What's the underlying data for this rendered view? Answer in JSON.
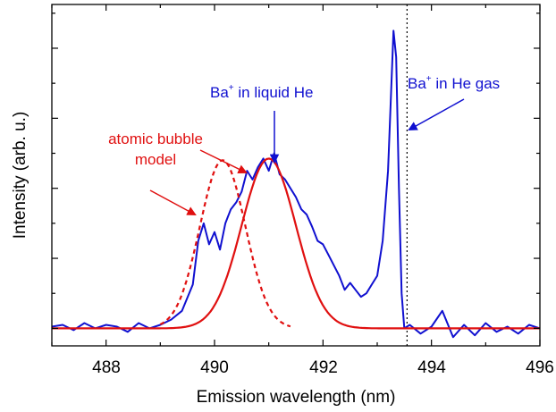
{
  "chart_data": {
    "type": "line",
    "title": "",
    "xlabel": "Emission wavelength (nm)",
    "ylabel": "Intensity (arb. u.)",
    "xlim": [
      487,
      496
    ],
    "ylim": [
      -0.1,
      1.85
    ],
    "xticks": [
      488,
      490,
      492,
      494,
      496
    ],
    "xtick_labels": [
      "488",
      "490",
      "492",
      "494",
      "496"
    ],
    "grid": false,
    "legend": "none",
    "colors": {
      "blue": "#1010d0",
      "red": "#e01010",
      "black": "#000000"
    },
    "series": [
      {
        "name": "Ba+ in liquid He",
        "color": "#1010d0",
        "style": "solid",
        "x": [
          487.0,
          487.2,
          487.4,
          487.6,
          487.8,
          488.0,
          488.2,
          488.4,
          488.6,
          488.8,
          489.0,
          489.2,
          489.4,
          489.6,
          489.7,
          489.8,
          489.9,
          490.0,
          490.1,
          490.2,
          490.3,
          490.4,
          490.5,
          490.6,
          490.7,
          490.8,
          490.9,
          491.0,
          491.1,
          491.2,
          491.3,
          491.4,
          491.5,
          491.6,
          491.7,
          491.8,
          491.9,
          492.0,
          492.1,
          492.2,
          492.3,
          492.4,
          492.5,
          492.6,
          492.7,
          492.8,
          492.9,
          493.0,
          493.1,
          493.2,
          493.3,
          493.35,
          493.4,
          493.45,
          493.5,
          493.6,
          493.8,
          494.0,
          494.2,
          494.4,
          494.6,
          494.8,
          495.0,
          495.2,
          495.4,
          495.6,
          495.8,
          496.0
        ],
        "y": [
          0.01,
          0.02,
          -0.01,
          0.03,
          0.0,
          0.02,
          0.01,
          -0.02,
          0.03,
          0.0,
          0.02,
          0.05,
          0.1,
          0.25,
          0.5,
          0.6,
          0.48,
          0.55,
          0.45,
          0.6,
          0.68,
          0.72,
          0.78,
          0.9,
          0.85,
          0.92,
          0.97,
          0.9,
          1.0,
          0.88,
          0.85,
          0.8,
          0.75,
          0.68,
          0.65,
          0.58,
          0.5,
          0.48,
          0.42,
          0.36,
          0.3,
          0.22,
          0.26,
          0.22,
          0.18,
          0.2,
          0.25,
          0.3,
          0.5,
          0.9,
          1.7,
          1.55,
          0.8,
          0.2,
          0.0,
          0.02,
          -0.03,
          0.01,
          0.1,
          -0.05,
          0.02,
          -0.04,
          0.03,
          -0.02,
          0.01,
          -0.03,
          0.02,
          0.0
        ]
      },
      {
        "name": "atomic bubble model",
        "color": "#e01010",
        "style": "dashed",
        "model": "gaussian",
        "center": 490.15,
        "sigma": 0.42,
        "amplitude": 0.96,
        "x_range": [
          489.0,
          491.4
        ]
      },
      {
        "name": "atomic bubble model",
        "color": "#e01010",
        "style": "solid",
        "model": "gaussian",
        "center": 491.0,
        "sigma": 0.5,
        "amplitude": 0.97,
        "x_range": [
          487.0,
          496.0
        ]
      }
    ],
    "reference_line": {
      "x": 493.55,
      "color": "#000000",
      "style": "dotted"
    },
    "annotations": {
      "liquid_he": {
        "text": "Ba",
        "sup": "+",
        "rest": " in liquid He",
        "color": "#1010d0"
      },
      "gas_he": {
        "text": "Ba",
        "sup": "+",
        "rest": " in He gas",
        "color": "#1010d0"
      },
      "model_line1": {
        "text": "atomic bubble",
        "color": "#e01010"
      },
      "model_line2": {
        "text": "model",
        "color": "#e01010"
      }
    }
  }
}
